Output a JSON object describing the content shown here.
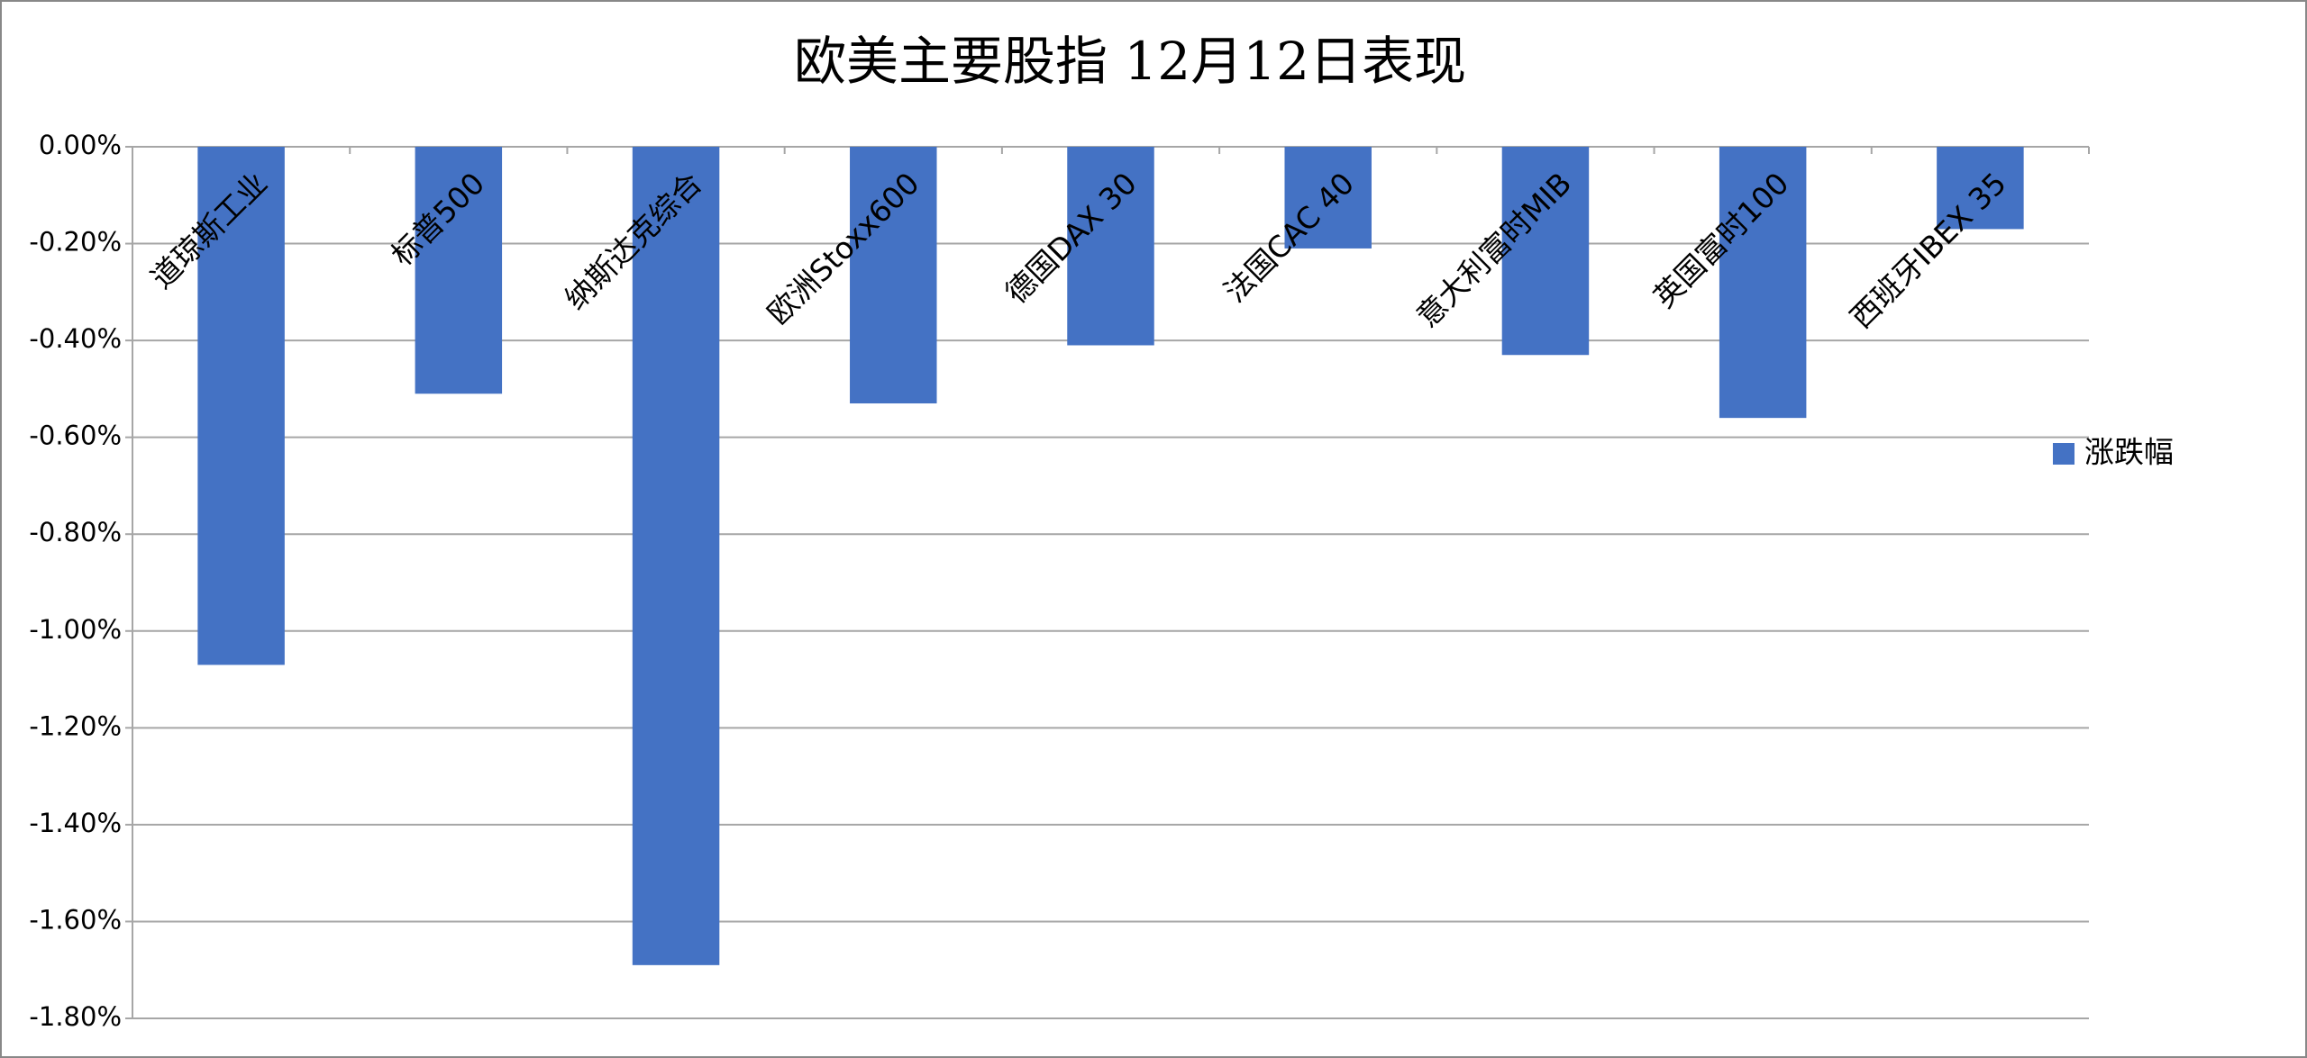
{
  "chart_data": {
    "type": "bar",
    "title": "欧美主要股指 12月12日表现",
    "categories": [
      "道琼斯工业",
      "标普500",
      "纳斯达克综合",
      "欧洲Stoxx600",
      "德国DAX 30",
      "法国CAC 40",
      "意大利富时MIB",
      "英国富时100",
      "西班牙IBEX 35"
    ],
    "series": [
      {
        "name": "涨跌幅",
        "color": "#4472c4",
        "values": [
          -1.07,
          -0.51,
          -1.69,
          -0.53,
          -0.41,
          -0.21,
          -0.43,
          -0.56,
          -0.17
        ]
      }
    ],
    "ylim": [
      -1.8,
      0
    ],
    "yticks": [
      {
        "value": 0,
        "label": "0.00%"
      },
      {
        "value": -0.2,
        "label": "-0.20%"
      },
      {
        "value": -0.4,
        "label": "-0.40%"
      },
      {
        "value": -0.6,
        "label": "-0.60%"
      },
      {
        "value": -0.8,
        "label": "-0.80%"
      },
      {
        "value": -1.0,
        "label": "-1.00%"
      },
      {
        "value": -1.2,
        "label": "-1.20%"
      },
      {
        "value": -1.4,
        "label": "-1.40%"
      },
      {
        "value": -1.6,
        "label": "-1.60%"
      },
      {
        "value": -1.8,
        "label": "-1.80%"
      }
    ],
    "grid": true,
    "legend_position": "right"
  }
}
